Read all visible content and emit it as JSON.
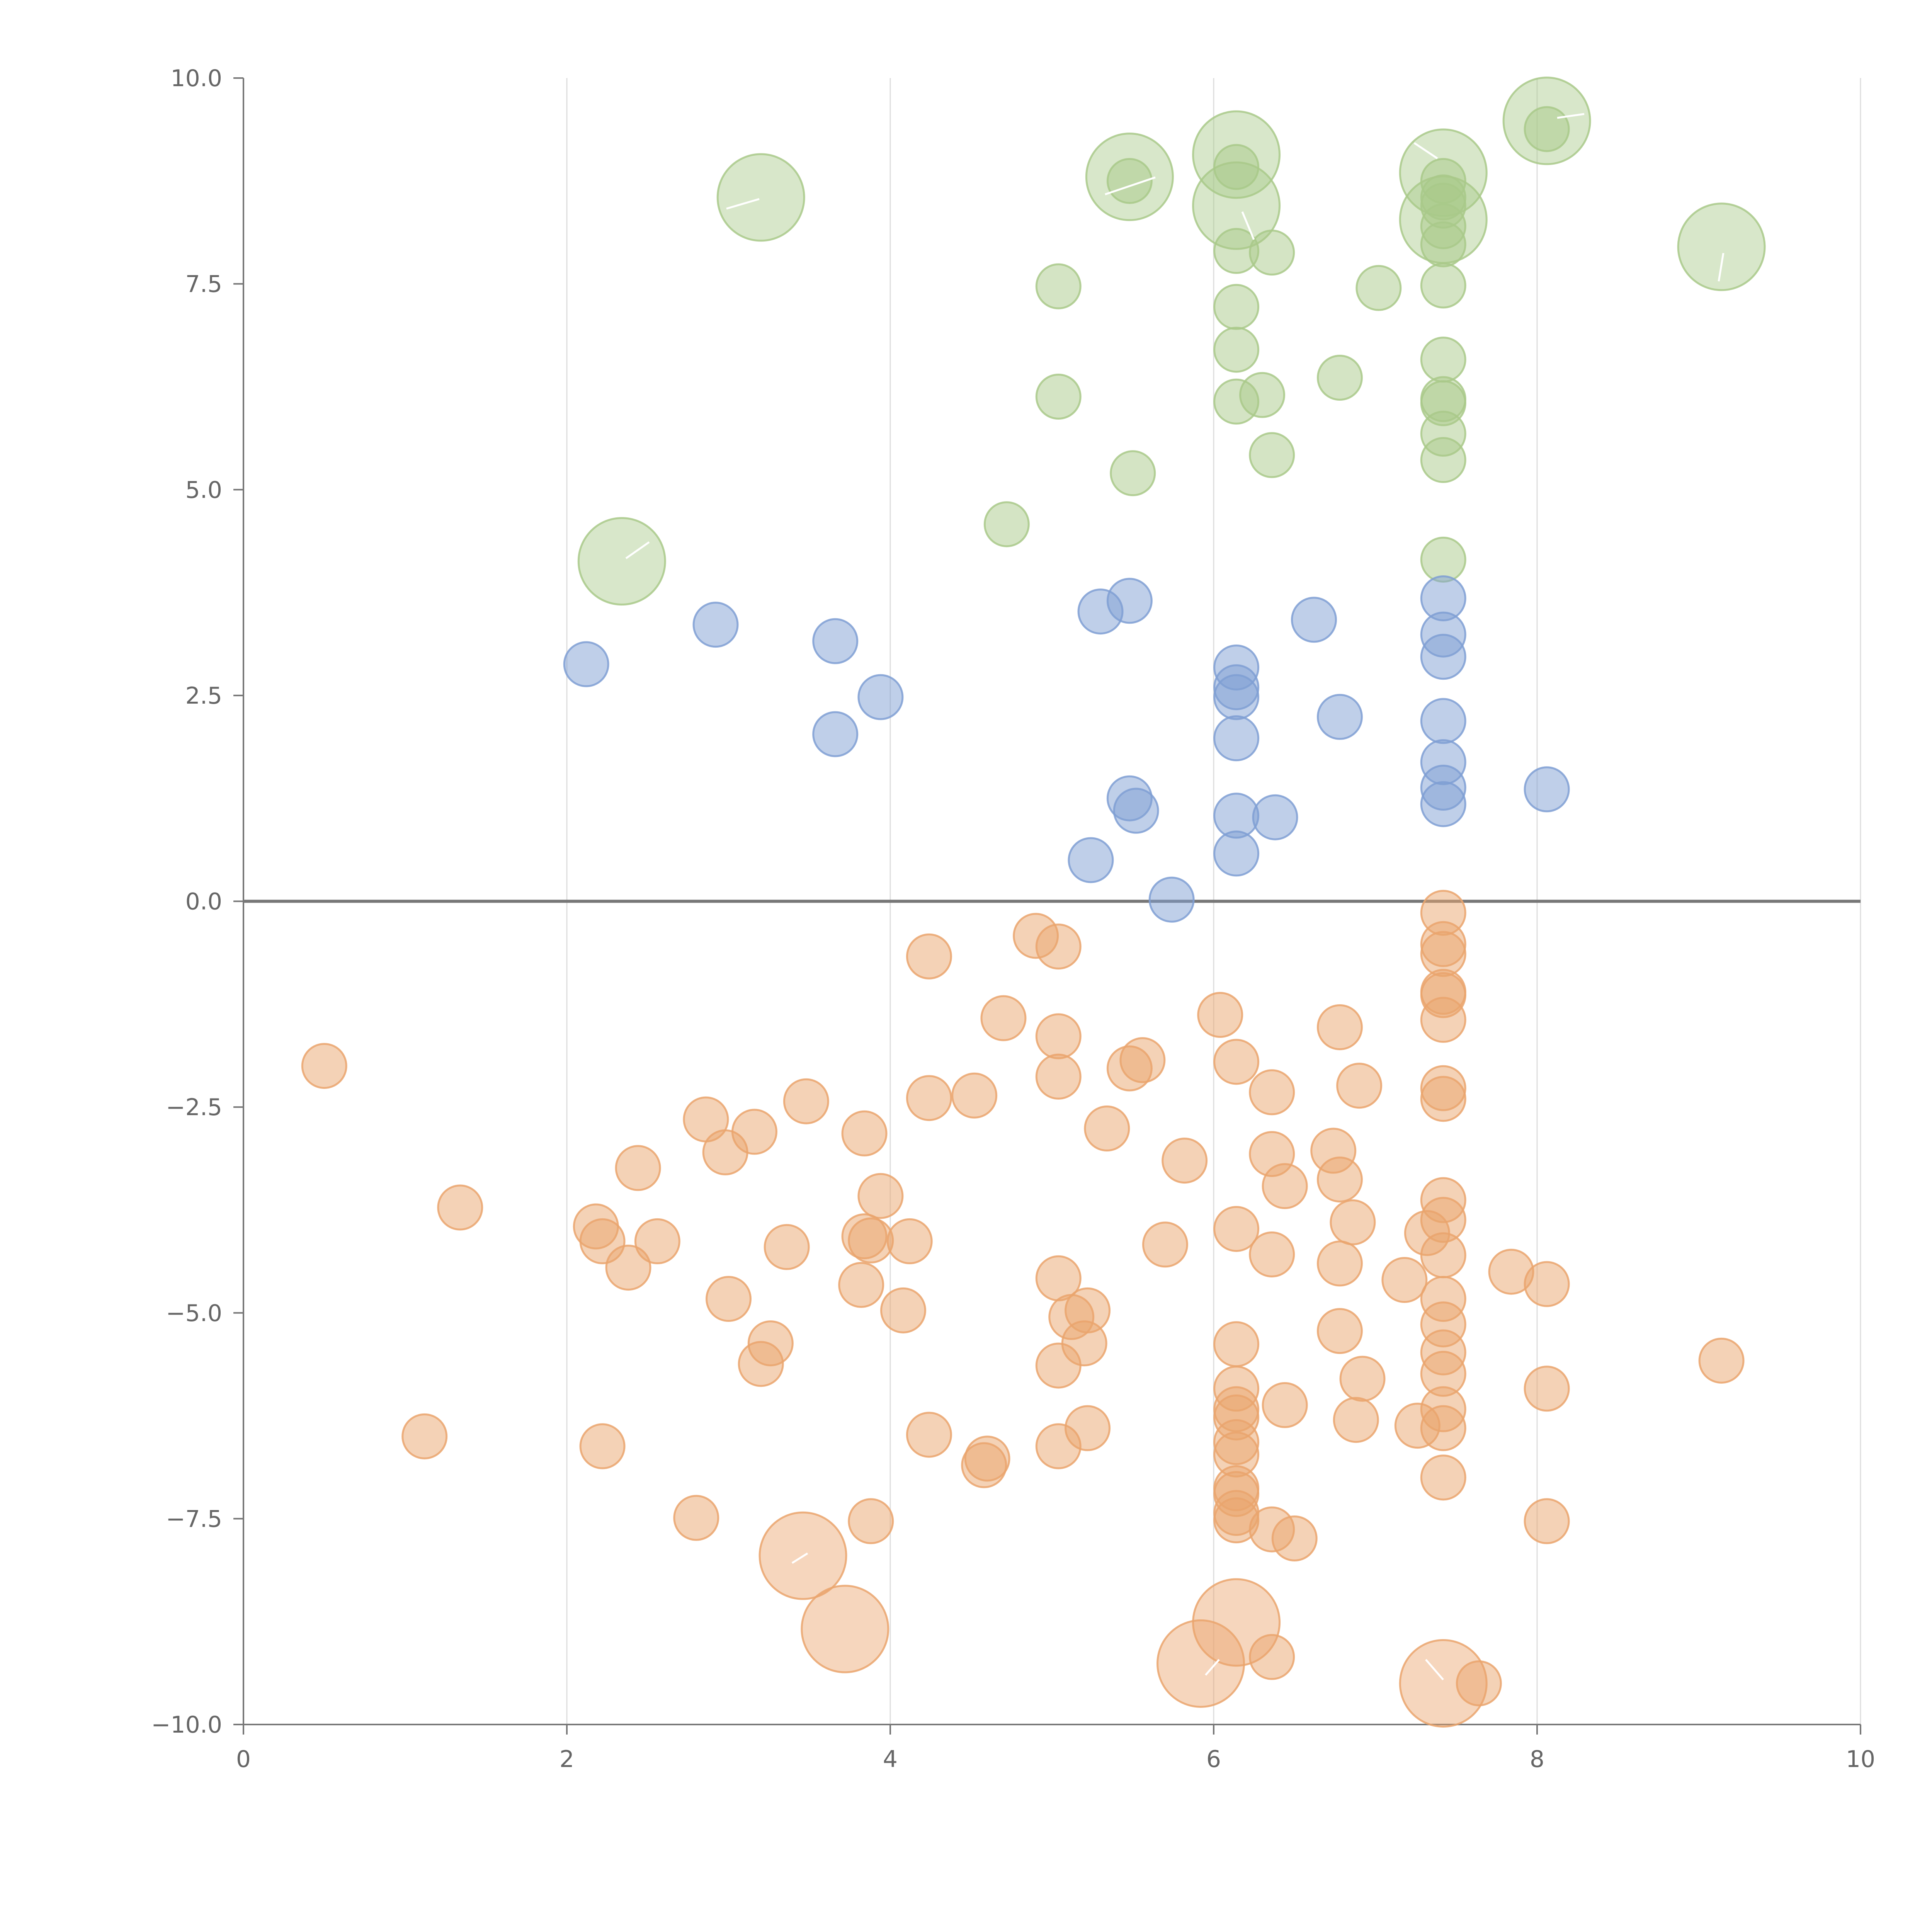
{
  "chart_data": {
    "type": "scatter",
    "title": "",
    "xlabel": "",
    "ylabel": "",
    "xlim": [
      0,
      10
    ],
    "ylim": [
      -10,
      10
    ],
    "x_ticks": [
      "0",
      "2",
      "4",
      "6",
      "8",
      "10"
    ],
    "y_ticks": [
      "10.0",
      "7.5",
      "5.0",
      "2.5",
      "0.0",
      "−2.5",
      "−5.0",
      "−7.5",
      "−10.0"
    ],
    "x_tick_values": [
      0,
      2,
      4,
      6,
      8,
      10
    ],
    "y_tick_values": [
      10,
      7.5,
      5,
      2.5,
      0,
      -2.5,
      -5,
      -7.5,
      -10
    ],
    "grid": "vertical lines at x ticks; horizontal reference line at y = 0",
    "legend": "none",
    "size_encoding": "small points and larger highlighted points",
    "series": [
      {
        "color": "#a9c98a",
        "points": [
          [
            8.06,
            9.48,
            1
          ],
          [
            6.14,
            9.07,
            1
          ],
          [
            7.42,
            8.85,
            1
          ],
          [
            5.48,
            8.8,
            1
          ],
          [
            3.2,
            8.55,
            1
          ],
          [
            6.14,
            8.45,
            1
          ],
          [
            7.42,
            8.28,
            1
          ],
          [
            9.14,
            7.95,
            1
          ],
          [
            2.34,
            4.13,
            1
          ],
          [
            8.06,
            9.38,
            0
          ],
          [
            6.14,
            8.92,
            0
          ],
          [
            7.42,
            8.75,
            0
          ],
          [
            5.48,
            8.75,
            0
          ],
          [
            7.42,
            8.55,
            0
          ],
          [
            7.42,
            8.45,
            0
          ],
          [
            7.42,
            8.2,
            0
          ],
          [
            7.42,
            7.98,
            0
          ],
          [
            6.14,
            7.9,
            0
          ],
          [
            6.36,
            7.88,
            0
          ],
          [
            5.04,
            7.47,
            0
          ],
          [
            7.42,
            7.48,
            0
          ],
          [
            7.02,
            7.45,
            0
          ],
          [
            6.14,
            7.22,
            0
          ],
          [
            6.14,
            6.7,
            0
          ],
          [
            7.42,
            6.58,
            0
          ],
          [
            6.78,
            6.36,
            0
          ],
          [
            6.3,
            6.15,
            0
          ],
          [
            5.04,
            6.13,
            0
          ],
          [
            7.42,
            6.1,
            0
          ],
          [
            7.42,
            6.05,
            0
          ],
          [
            6.14,
            6.07,
            0
          ],
          [
            7.42,
            5.68,
            0
          ],
          [
            6.36,
            5.42,
            0
          ],
          [
            7.42,
            5.36,
            0
          ],
          [
            5.5,
            5.2,
            0
          ],
          [
            4.72,
            4.58,
            0
          ],
          [
            7.42,
            4.15,
            0
          ]
        ]
      },
      {
        "color": "#7f9fd3",
        "points": [
          [
            7.42,
            3.68,
            0
          ],
          [
            5.48,
            3.65,
            0
          ],
          [
            5.3,
            3.52,
            0
          ],
          [
            6.62,
            3.42,
            0
          ],
          [
            2.92,
            3.36,
            0
          ],
          [
            7.42,
            3.24,
            0
          ],
          [
            3.66,
            3.16,
            0
          ],
          [
            7.42,
            2.97,
            0
          ],
          [
            2.12,
            2.88,
            0
          ],
          [
            6.14,
            2.84,
            0
          ],
          [
            6.14,
            2.6,
            0
          ],
          [
            6.14,
            2.48,
            0
          ],
          [
            3.94,
            2.48,
            0
          ],
          [
            6.78,
            2.24,
            0
          ],
          [
            7.42,
            2.19,
            0
          ],
          [
            3.66,
            2.03,
            0
          ],
          [
            6.14,
            1.98,
            0
          ],
          [
            7.42,
            1.69,
            0
          ],
          [
            7.42,
            1.38,
            0
          ],
          [
            8.06,
            1.36,
            0
          ],
          [
            5.48,
            1.25,
            0
          ],
          [
            7.42,
            1.18,
            0
          ],
          [
            5.52,
            1.1,
            0
          ],
          [
            6.14,
            1.04,
            0
          ],
          [
            6.38,
            1.02,
            0
          ],
          [
            6.14,
            0.58,
            0
          ],
          [
            5.24,
            0.5,
            0
          ],
          [
            5.74,
            0.02,
            0
          ]
        ]
      },
      {
        "color": "#eaa56d",
        "points": [
          [
            7.42,
            -0.14,
            0
          ],
          [
            7.42,
            -0.52,
            0
          ],
          [
            7.42,
            -0.64,
            0
          ],
          [
            4.9,
            -0.42,
            0
          ],
          [
            5.04,
            -0.55,
            0
          ],
          [
            4.24,
            -0.67,
            0
          ],
          [
            7.42,
            -1.1,
            0
          ],
          [
            7.42,
            -1.14,
            0
          ],
          [
            4.7,
            -1.42,
            0
          ],
          [
            6.04,
            -1.38,
            0
          ],
          [
            7.42,
            -1.44,
            0
          ],
          [
            6.78,
            -1.53,
            0
          ],
          [
            5.04,
            -1.64,
            0
          ],
          [
            6.14,
            -1.95,
            0
          ],
          [
            5.56,
            -1.93,
            0
          ],
          [
            5.48,
            -2.03,
            0
          ],
          [
            0.5,
            -2.0,
            0
          ],
          [
            5.04,
            -2.13,
            0
          ],
          [
            6.9,
            -2.24,
            0
          ],
          [
            7.42,
            -2.27,
            0
          ],
          [
            6.36,
            -2.32,
            0
          ],
          [
            4.24,
            -2.39,
            0
          ],
          [
            4.52,
            -2.36,
            0
          ],
          [
            7.42,
            -2.4,
            0
          ],
          [
            3.48,
            -2.43,
            0
          ],
          [
            2.86,
            -2.65,
            0
          ],
          [
            3.16,
            -2.8,
            0
          ],
          [
            3.84,
            -2.82,
            0
          ],
          [
            5.34,
            -2.76,
            0
          ],
          [
            2.98,
            -3.05,
            0
          ],
          [
            6.36,
            -3.07,
            0
          ],
          [
            6.74,
            -3.03,
            0
          ],
          [
            5.82,
            -3.15,
            0
          ],
          [
            2.44,
            -3.24,
            0
          ],
          [
            6.78,
            -3.38,
            0
          ],
          [
            6.44,
            -3.46,
            0
          ],
          [
            3.94,
            -3.58,
            0
          ],
          [
            7.42,
            -3.63,
            0
          ],
          [
            1.34,
            -3.72,
            0
          ],
          [
            7.42,
            -3.87,
            0
          ],
          [
            6.86,
            -3.9,
            0
          ],
          [
            2.18,
            -3.95,
            0
          ],
          [
            7.32,
            -4.03,
            0
          ],
          [
            6.14,
            -3.98,
            0
          ],
          [
            3.84,
            -4.07,
            0
          ],
          [
            3.88,
            -4.12,
            0
          ],
          [
            4.12,
            -4.13,
            0
          ],
          [
            2.56,
            -4.13,
            0
          ],
          [
            2.22,
            -4.13,
            0
          ],
          [
            5.7,
            -4.17,
            0
          ],
          [
            3.36,
            -4.2,
            0
          ],
          [
            6.36,
            -4.29,
            0
          ],
          [
            7.42,
            -4.3,
            0
          ],
          [
            2.38,
            -4.45,
            0
          ],
          [
            6.78,
            -4.4,
            0
          ],
          [
            7.84,
            -4.5,
            0
          ],
          [
            5.04,
            -4.58,
            0
          ],
          [
            7.18,
            -4.6,
            0
          ],
          [
            8.06,
            -4.65,
            0
          ],
          [
            3.82,
            -4.66,
            0
          ],
          [
            7.42,
            -4.83,
            0
          ],
          [
            3.0,
            -4.83,
            0
          ],
          [
            4.08,
            -4.97,
            0
          ],
          [
            5.22,
            -4.97,
            0
          ],
          [
            5.12,
            -5.05,
            0
          ],
          [
            7.42,
            -5.14,
            0
          ],
          [
            6.78,
            -5.22,
            0
          ],
          [
            3.26,
            -5.37,
            0
          ],
          [
            5.2,
            -5.37,
            0
          ],
          [
            6.14,
            -5.38,
            0
          ],
          [
            7.42,
            -5.48,
            0
          ],
          [
            3.2,
            -5.62,
            0
          ],
          [
            9.14,
            -5.58,
            0
          ],
          [
            5.04,
            -5.64,
            0
          ],
          [
            7.42,
            -5.74,
            0
          ],
          [
            6.92,
            -5.8,
            0
          ],
          [
            6.14,
            -5.92,
            0
          ],
          [
            8.06,
            -5.92,
            0
          ],
          [
            6.14,
            -6.17,
            0
          ],
          [
            6.44,
            -6.12,
            0
          ],
          [
            7.42,
            -6.17,
            0
          ],
          [
            6.14,
            -6.27,
            0
          ],
          [
            6.88,
            -6.3,
            0
          ],
          [
            7.26,
            -6.37,
            0
          ],
          [
            7.42,
            -6.4,
            0
          ],
          [
            5.22,
            -6.4,
            0
          ],
          [
            1.12,
            -6.5,
            0
          ],
          [
            4.24,
            -6.48,
            0
          ],
          [
            6.14,
            -6.57,
            0
          ],
          [
            2.22,
            -6.62,
            0
          ],
          [
            5.04,
            -6.62,
            0
          ],
          [
            6.14,
            -6.72,
            0
          ],
          [
            4.6,
            -6.77,
            0
          ],
          [
            4.58,
            -6.85,
            0
          ],
          [
            7.42,
            -7.0,
            0
          ],
          [
            6.14,
            -7.13,
            0
          ],
          [
            6.14,
            -7.2,
            0
          ],
          [
            6.14,
            -7.43,
            0
          ],
          [
            2.8,
            -7.49,
            0
          ],
          [
            6.14,
            -7.52,
            0
          ],
          [
            3.88,
            -7.53,
            0
          ],
          [
            8.06,
            -7.53,
            0
          ],
          [
            6.36,
            -7.63,
            0
          ],
          [
            6.5,
            -7.74,
            0
          ],
          [
            6.36,
            -9.18,
            0
          ],
          [
            7.64,
            -9.5,
            0
          ],
          [
            3.46,
            -7.95,
            1
          ],
          [
            3.72,
            -8.84,
            1
          ],
          [
            6.14,
            -8.76,
            1
          ],
          [
            5.92,
            -9.26,
            1
          ],
          [
            7.42,
            -9.5,
            1
          ]
        ]
      }
    ]
  }
}
